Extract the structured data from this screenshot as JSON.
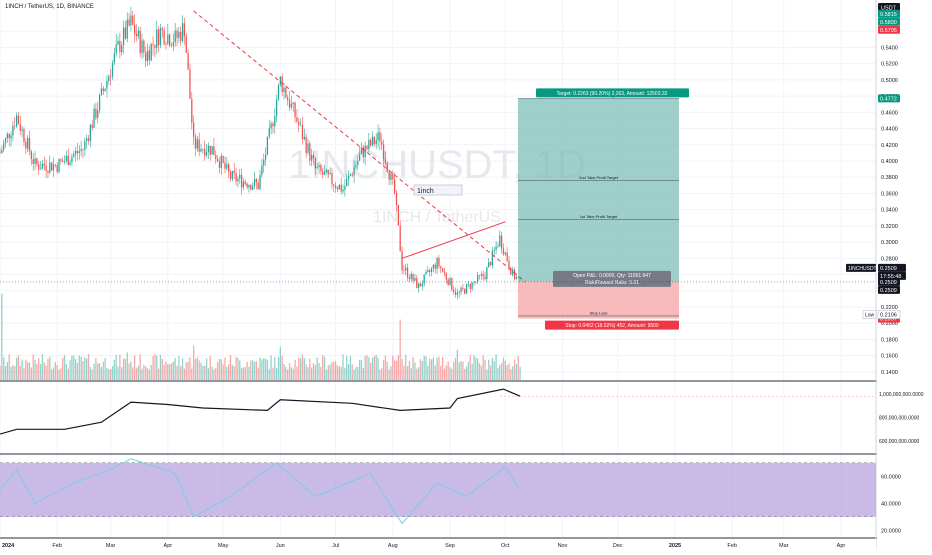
{
  "header": {
    "symbol_title": "1INCH / TetherUS, 1D, BINANCE"
  },
  "watermark": {
    "line1": "1INCHUSDT, 1D",
    "line2": "1INCH / TetherUS"
  },
  "colors": {
    "up": "#26a69a",
    "down": "#ef5350",
    "trend": "#f23645",
    "target_zone": "#7fbfb9",
    "stop_zone": "#f5a3a3",
    "rsi_band": "#b39ddb",
    "rsi_line": "#7ecbea",
    "label_green": "#089981",
    "label_red": "#f23645"
  },
  "axis": {
    "currency_label": "USDT",
    "price_ticks": [
      "0.5600",
      "0.5400",
      "0.5200",
      "0.5000",
      "0.4800",
      "0.4600",
      "0.4400",
      "0.4200",
      "0.4000",
      "0.3800",
      "0.3600",
      "0.3400",
      "0.3200",
      "0.3000",
      "0.2800",
      "0.2600",
      "0.2400",
      "0.2200",
      "0.2000",
      "0.1800",
      "0.1600",
      "0.1400"
    ],
    "price_badges": [
      {
        "text": "0.5815",
        "kind": "green",
        "price": 0.5815
      },
      {
        "text": "0.5800",
        "kind": "green",
        "price": 0.58
      },
      {
        "text": "0.5795",
        "kind": "red",
        "price": 0.5795
      },
      {
        "text": "0.4772",
        "kind": "green",
        "price": 0.4772
      },
      {
        "text": "0.2509",
        "kind": "dark",
        "price": 0.2509
      },
      {
        "text": "0.2509",
        "kind": "dark",
        "price": 0.2509
      },
      {
        "text": "0.2057",
        "kind": "red",
        "price": 0.2057
      }
    ],
    "symbol_badge": "1INCHUSDT",
    "last_price": "0.2509",
    "countdown": "17:55:48",
    "low_label": "Low",
    "low_value": "0.2106",
    "low_price": 0.2106,
    "obv_ticks": [
      "1,000,000,000.0000",
      "800,000,000.0000",
      "600,000,000.0000"
    ],
    "rsi_ticks": [
      "60.0000",
      "40.0000",
      "20.0000"
    ],
    "x_ticks": [
      "2024",
      "Feb",
      "Mar",
      "Apr",
      "May",
      "Jun",
      "Jul",
      "Aug",
      "Sep",
      "Oct",
      "Nov",
      "Dec",
      "2025",
      "Feb",
      "Mar",
      "Apr"
    ]
  },
  "position": {
    "entry_price": 0.2509,
    "target_price": 0.4772,
    "stop_price": 0.2057,
    "target_label": "Target: 0.2263 (90.20%) 2,263, Amount: 12503.32",
    "stop_label": "Stop: 0.0452 (18.02%) 452, Amount: 9500",
    "info_line1": "Open P&L: 0.0000, Qty: 11061.947",
    "info_line2": "Risk/Reward Ratio: 5.01",
    "levels": [
      {
        "label": "3rd Take Profit Target",
        "price": 0.4772
      },
      {
        "label": "2nd Take Profit Target",
        "price": 0.376
      },
      {
        "label": "1st Take Profit Target",
        "price": 0.328
      },
      {
        "label": "Stop Loss",
        "price": 0.209
      }
    ]
  },
  "annotation": {
    "text": "1inch"
  },
  "chart_data": {
    "type": "candlestick",
    "symbol": "1INCHUSDT",
    "timeframe": "1D",
    "exchange": "BINANCE",
    "x_range": [
      "2024-01-01",
      "2025-04-20"
    ],
    "price_range": [
      0.13,
      0.58
    ],
    "close_path": [
      {
        "date": "2024-01-01",
        "close": 0.41
      },
      {
        "date": "2024-01-10",
        "close": 0.455
      },
      {
        "date": "2024-01-20",
        "close": 0.395
      },
      {
        "date": "2024-02-01",
        "close": 0.395
      },
      {
        "date": "2024-02-15",
        "close": 0.415
      },
      {
        "date": "2024-02-25",
        "close": 0.48
      },
      {
        "date": "2024-03-05",
        "close": 0.54
      },
      {
        "date": "2024-03-12",
        "close": 0.57
      },
      {
        "date": "2024-03-20",
        "close": 0.53
      },
      {
        "date": "2024-03-28",
        "close": 0.56
      },
      {
        "date": "2024-04-05",
        "close": 0.55
      },
      {
        "date": "2024-04-10",
        "close": 0.565
      },
      {
        "date": "2024-04-15",
        "close": 0.42
      },
      {
        "date": "2024-04-25",
        "close": 0.415
      },
      {
        "date": "2024-05-05",
        "close": 0.38
      },
      {
        "date": "2024-05-20",
        "close": 0.37
      },
      {
        "date": "2024-05-27",
        "close": 0.44
      },
      {
        "date": "2024-06-01",
        "close": 0.5
      },
      {
        "date": "2024-06-10",
        "close": 0.45
      },
      {
        "date": "2024-06-20",
        "close": 0.39
      },
      {
        "date": "2024-07-05",
        "close": 0.365
      },
      {
        "date": "2024-07-15",
        "close": 0.41
      },
      {
        "date": "2024-07-25",
        "close": 0.43
      },
      {
        "date": "2024-08-02",
        "close": 0.36
      },
      {
        "date": "2024-08-06",
        "close": 0.27
      },
      {
        "date": "2024-08-15",
        "close": 0.245
      },
      {
        "date": "2024-08-25",
        "close": 0.275
      },
      {
        "date": "2024-09-05",
        "close": 0.235
      },
      {
        "date": "2024-09-20",
        "close": 0.26
      },
      {
        "date": "2024-09-28",
        "close": 0.305
      },
      {
        "date": "2024-10-05",
        "close": 0.26
      },
      {
        "date": "2024-10-09",
        "close": 0.2509
      }
    ],
    "trendlines": [
      {
        "from": {
          "date": "2024-04-15",
          "price": 0.585
        },
        "to": {
          "date": "2024-10-12",
          "price": 0.2509
        }
      },
      {
        "from": {
          "date": "2024-08-06",
          "price": 0.28
        },
        "to": {
          "date": "2024-10-01",
          "price": 0.325
        }
      }
    ],
    "obv_path": [
      {
        "date": "2024-01-01",
        "value": 660000000
      },
      {
        "date": "2024-01-10",
        "value": 700000000
      },
      {
        "date": "2024-02-05",
        "value": 700000000
      },
      {
        "date": "2024-02-25",
        "value": 760000000
      },
      {
        "date": "2024-03-12",
        "value": 930000000
      },
      {
        "date": "2024-04-01",
        "value": 910000000
      },
      {
        "date": "2024-04-20",
        "value": 880000000
      },
      {
        "date": "2024-05-25",
        "value": 860000000
      },
      {
        "date": "2024-06-01",
        "value": 950000000
      },
      {
        "date": "2024-07-10",
        "value": 920000000
      },
      {
        "date": "2024-08-05",
        "value": 860000000
      },
      {
        "date": "2024-09-01",
        "value": 880000000
      },
      {
        "date": "2024-09-05",
        "value": 960000000
      },
      {
        "date": "2024-09-30",
        "value": 1040000000
      },
      {
        "date": "2024-10-09",
        "value": 980000000
      }
    ],
    "obv_range": [
      500000000,
      1100000000
    ],
    "rsi_path": [
      {
        "date": "2024-01-01",
        "value": 50
      },
      {
        "date": "2024-01-10",
        "value": 65
      },
      {
        "date": "2024-01-20",
        "value": 40
      },
      {
        "date": "2024-02-10",
        "value": 55
      },
      {
        "date": "2024-03-01",
        "value": 65
      },
      {
        "date": "2024-03-12",
        "value": 73
      },
      {
        "date": "2024-04-05",
        "value": 62
      },
      {
        "date": "2024-04-15",
        "value": 30
      },
      {
        "date": "2024-05-05",
        "value": 45
      },
      {
        "date": "2024-05-30",
        "value": 70
      },
      {
        "date": "2024-06-20",
        "value": 45
      },
      {
        "date": "2024-07-20",
        "value": 62
      },
      {
        "date": "2024-08-06",
        "value": 25
      },
      {
        "date": "2024-08-25",
        "value": 55
      },
      {
        "date": "2024-09-10",
        "value": 45
      },
      {
        "date": "2024-10-01",
        "value": 67
      },
      {
        "date": "2024-10-09",
        "value": 50
      }
    ],
    "rsi_range": [
      15,
      75
    ],
    "rsi_band": [
      30,
      70
    ],
    "volume_range": [
      0,
      110000000
    ],
    "volume_spikes": [
      {
        "date": "2024-01-02",
        "value": 100000000
      },
      {
        "date": "2024-03-10",
        "value": 32000000
      },
      {
        "date": "2024-04-15",
        "value": 40000000
      },
      {
        "date": "2024-06-01",
        "value": 38000000
      },
      {
        "date": "2024-08-05",
        "value": 70000000
      },
      {
        "date": "2024-09-05",
        "value": 35000000
      }
    ]
  }
}
